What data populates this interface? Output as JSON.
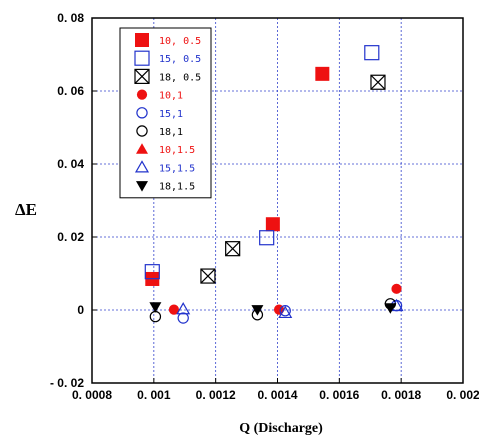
{
  "chart_data": {
    "type": "scatter",
    "xlabel": "Q (Discharge)",
    "ylabel": "ΔE",
    "xlim": [
      0.0008,
      0.002
    ],
    "ylim": [
      -0.02,
      0.08
    ],
    "x_ticks": [
      "0. 0008",
      "0. 001",
      "0. 0012",
      "0. 0014",
      "0. 0016",
      "0. 0018",
      "0. 002"
    ],
    "y_ticks": [
      "- 0. 02",
      "0",
      "0. 02",
      "0. 04",
      "0. 06",
      "0. 08"
    ],
    "grid": true,
    "legend_position": "top-left",
    "series": [
      {
        "name": "10, 0.5",
        "marker": "square-filled",
        "color": "#ee1111",
        "points": [
          {
            "x": 0.000995,
            "y": 0.0085
          },
          {
            "x": 0.001385,
            "y": 0.0235
          },
          {
            "x": 0.001545,
            "y": 0.0647
          }
        ]
      },
      {
        "name": "15, 0.5",
        "marker": "square-open",
        "color": "#2233cc",
        "points": [
          {
            "x": 0.000995,
            "y": 0.0105
          },
          {
            "x": 0.001365,
            "y": 0.0198
          },
          {
            "x": 0.001705,
            "y": 0.0705
          }
        ]
      },
      {
        "name": "18, 0.5",
        "marker": "box-x",
        "color": "#000000",
        "points": [
          {
            "x": 0.001175,
            "y": 0.0093
          },
          {
            "x": 0.001255,
            "y": 0.0168
          },
          {
            "x": 0.001725,
            "y": 0.0624
          }
        ]
      },
      {
        "name": "10,1",
        "marker": "circle-filled",
        "color": "#ee1111",
        "points": [
          {
            "x": 0.001065,
            "y": 0.0001
          },
          {
            "x": 0.001405,
            "y": 0.0001
          },
          {
            "x": 0.001785,
            "y": 0.0058
          }
        ]
      },
      {
        "name": "15,1",
        "marker": "circle-open",
        "color": "#2233cc",
        "points": [
          {
            "x": 0.001095,
            "y": -0.0022
          },
          {
            "x": 0.001425,
            "y": -0.0002
          },
          {
            "x": 0.001785,
            "y": 0.0012
          }
        ]
      },
      {
        "name": "18,1",
        "marker": "circle-open",
        "color": "#000000",
        "points": [
          {
            "x": 0.001005,
            "y": -0.0018
          },
          {
            "x": 0.001335,
            "y": -0.0013
          },
          {
            "x": 0.001765,
            "y": 0.0017
          }
        ]
      },
      {
        "name": "10,1.5",
        "marker": "triangle-filled",
        "color": "#ee1111",
        "points": []
      },
      {
        "name": "15,1.5",
        "marker": "triangle-open",
        "color": "#2233cc",
        "points": [
          {
            "x": 0.001095,
            "y": 0.0002
          },
          {
            "x": 0.001425,
            "y": -0.0008
          },
          {
            "x": 0.001785,
            "y": 0.0011
          }
        ]
      },
      {
        "name": "18,1.5",
        "marker": "triangle-down-filled",
        "color": "#000000",
        "points": [
          {
            "x": 0.001005,
            "y": 0.0009
          },
          {
            "x": 0.001335,
            "y": 0.0001
          },
          {
            "x": 0.001765,
            "y": 0.0006
          }
        ]
      }
    ]
  }
}
